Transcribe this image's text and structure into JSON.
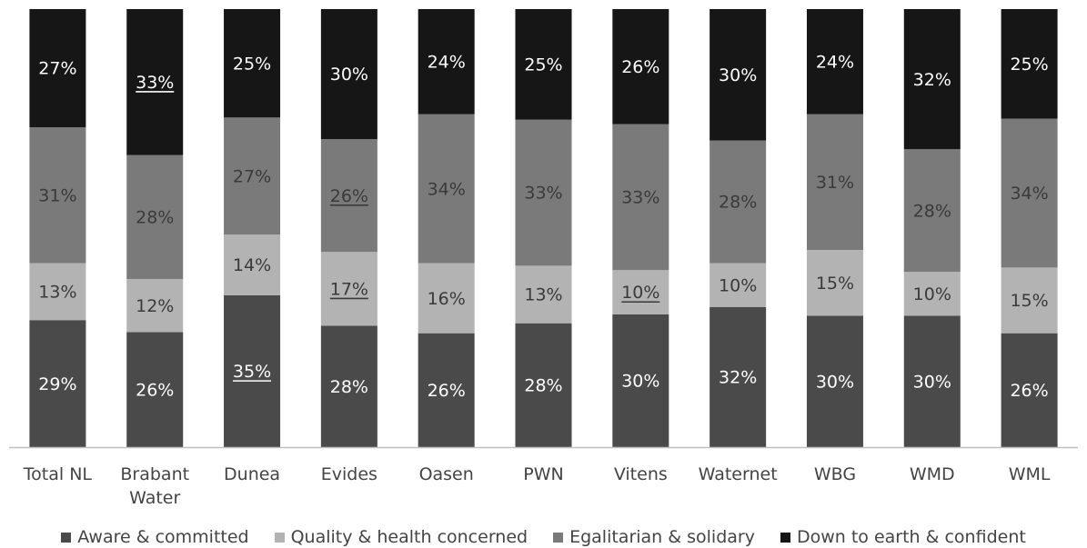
{
  "chart_data": {
    "type": "bar",
    "stacked": true,
    "categories": [
      "Total NL",
      "Brabant Water",
      "Dunea",
      "Evides",
      "Oasen",
      "PWN",
      "Vitens",
      "Waternet",
      "WBG",
      "WMD",
      "WML"
    ],
    "series": [
      {
        "name": "Aware & committed",
        "color": "#4a4a4a",
        "label_color": "#ffffff",
        "values": [
          29,
          26,
          35,
          28,
          26,
          28,
          30,
          32,
          30,
          30,
          26
        ],
        "underlined": [
          false,
          false,
          true,
          false,
          false,
          false,
          false,
          false,
          false,
          false,
          false
        ]
      },
      {
        "name": "Quality & health concerned",
        "color": "#b3b3b3",
        "label_color": "#3a3a3a",
        "values": [
          13,
          12,
          14,
          17,
          16,
          13,
          10,
          10,
          15,
          10,
          15
        ],
        "underlined": [
          false,
          false,
          false,
          true,
          false,
          false,
          true,
          false,
          false,
          false,
          false
        ]
      },
      {
        "name": "Egalitarian & solidary",
        "color": "#7a7a7a",
        "label_color": "#3a3a3a",
        "values": [
          31,
          28,
          27,
          26,
          34,
          33,
          33,
          28,
          31,
          28,
          34
        ],
        "underlined": [
          false,
          false,
          false,
          true,
          false,
          false,
          false,
          false,
          false,
          false,
          false
        ]
      },
      {
        "name": "Down to earth & confident",
        "color": "#161616",
        "label_color": "#ffffff",
        "values": [
          27,
          33,
          25,
          30,
          24,
          25,
          26,
          30,
          24,
          32,
          25
        ],
        "underlined": [
          false,
          true,
          false,
          false,
          false,
          false,
          false,
          false,
          false,
          false,
          false
        ]
      }
    ],
    "ylim": [
      0,
      100
    ],
    "value_suffix": "%",
    "grid": false,
    "legend_position": "bottom"
  }
}
